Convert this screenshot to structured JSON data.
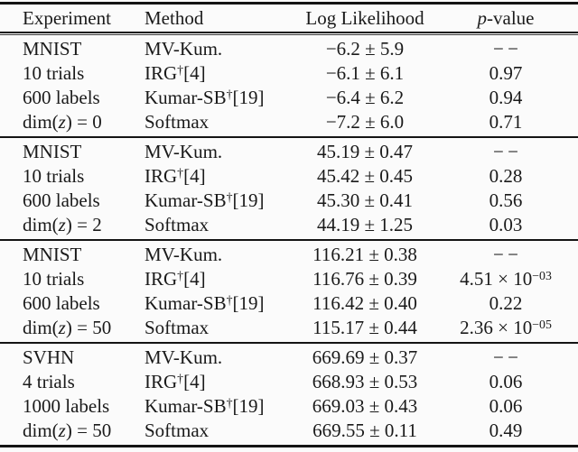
{
  "colors": {
    "background": "#fbfbfb",
    "text": "#1a1a1a",
    "rule": "#141414"
  },
  "headers": {
    "experiment": "Experiment",
    "method": "Method",
    "log_likelihood": "Log Likelihood",
    "p_italic": "p",
    "p_rest": "-value"
  },
  "blocks": [
    {
      "rows": [
        {
          "exp_pre": "MNIST",
          "exp_var": "",
          "exp_post": "",
          "method": "MV-Kum.",
          "method_sup": "",
          "method_ref": "",
          "ll": "−6.2 ± 5.9",
          "pv": "− −",
          "pv_sup": ""
        },
        {
          "exp_pre": "10 trials",
          "exp_var": "",
          "exp_post": "",
          "method": "IRG",
          "method_sup": "†",
          "method_ref": "[4]",
          "ll": "−6.1 ± 6.1",
          "pv": "0.97",
          "pv_sup": ""
        },
        {
          "exp_pre": "600 labels",
          "exp_var": "",
          "exp_post": "",
          "method": "Kumar-SB",
          "method_sup": "†",
          "method_ref": "[19]",
          "ll": "−6.4 ± 6.2",
          "pv": "0.94",
          "pv_sup": ""
        },
        {
          "exp_pre": "dim(",
          "exp_var": "z",
          "exp_post": ") = 0",
          "method": "Softmax",
          "method_sup": "",
          "method_ref": "",
          "ll": "−7.2 ± 6.0",
          "pv": "0.71",
          "pv_sup": ""
        }
      ]
    },
    {
      "rows": [
        {
          "exp_pre": "MNIST",
          "exp_var": "",
          "exp_post": "",
          "method": "MV-Kum.",
          "method_sup": "",
          "method_ref": "",
          "ll": "45.19 ± 0.47",
          "pv": "− −",
          "pv_sup": ""
        },
        {
          "exp_pre": "10 trials",
          "exp_var": "",
          "exp_post": "",
          "method": "IRG",
          "method_sup": "†",
          "method_ref": "[4]",
          "ll": "45.42 ± 0.45",
          "pv": "0.28",
          "pv_sup": ""
        },
        {
          "exp_pre": "600 labels",
          "exp_var": "",
          "exp_post": "",
          "method": "Kumar-SB",
          "method_sup": "†",
          "method_ref": "[19]",
          "ll": "45.30 ± 0.41",
          "pv": "0.56",
          "pv_sup": ""
        },
        {
          "exp_pre": "dim(",
          "exp_var": "z",
          "exp_post": ") = 2",
          "method": "Softmax",
          "method_sup": "",
          "method_ref": "",
          "ll": "44.19 ± 1.25",
          "pv": "0.03",
          "pv_sup": ""
        }
      ]
    },
    {
      "rows": [
        {
          "exp_pre": "MNIST",
          "exp_var": "",
          "exp_post": "",
          "method": "MV-Kum.",
          "method_sup": "",
          "method_ref": "",
          "ll": "116.21 ± 0.38",
          "pv": "− −",
          "pv_sup": ""
        },
        {
          "exp_pre": "10 trials",
          "exp_var": "",
          "exp_post": "",
          "method": "IRG",
          "method_sup": "†",
          "method_ref": "[4]",
          "ll": "116.76 ± 0.39",
          "pv": "4.51 × 10",
          "pv_sup": "−03"
        },
        {
          "exp_pre": "600 labels",
          "exp_var": "",
          "exp_post": "",
          "method": "Kumar-SB",
          "method_sup": "†",
          "method_ref": "[19]",
          "ll": "116.42 ± 0.40",
          "pv": "0.22",
          "pv_sup": ""
        },
        {
          "exp_pre": "dim(",
          "exp_var": "z",
          "exp_post": ") = 50",
          "method": "Softmax",
          "method_sup": "",
          "method_ref": "",
          "ll": "115.17 ± 0.44",
          "pv": "2.36 × 10",
          "pv_sup": "−05"
        }
      ]
    },
    {
      "rows": [
        {
          "exp_pre": "SVHN",
          "exp_var": "",
          "exp_post": "",
          "method": "MV-Kum.",
          "method_sup": "",
          "method_ref": "",
          "ll": "669.69 ± 0.37",
          "pv": "− −",
          "pv_sup": ""
        },
        {
          "exp_pre": "4 trials",
          "exp_var": "",
          "exp_post": "",
          "method": "IRG",
          "method_sup": "†",
          "method_ref": "[4]",
          "ll": "668.93 ± 0.53",
          "pv": "0.06",
          "pv_sup": ""
        },
        {
          "exp_pre": "1000 labels",
          "exp_var": "",
          "exp_post": "",
          "method": "Kumar-SB",
          "method_sup": "†",
          "method_ref": "[19]",
          "ll": "669.03 ± 0.43",
          "pv": "0.06",
          "pv_sup": ""
        },
        {
          "exp_pre": "dim(",
          "exp_var": "z",
          "exp_post": ") = 50",
          "method": "Softmax",
          "method_sup": "",
          "method_ref": "",
          "ll": "669.55 ± 0.11",
          "pv": "0.49",
          "pv_sup": ""
        }
      ]
    }
  ]
}
